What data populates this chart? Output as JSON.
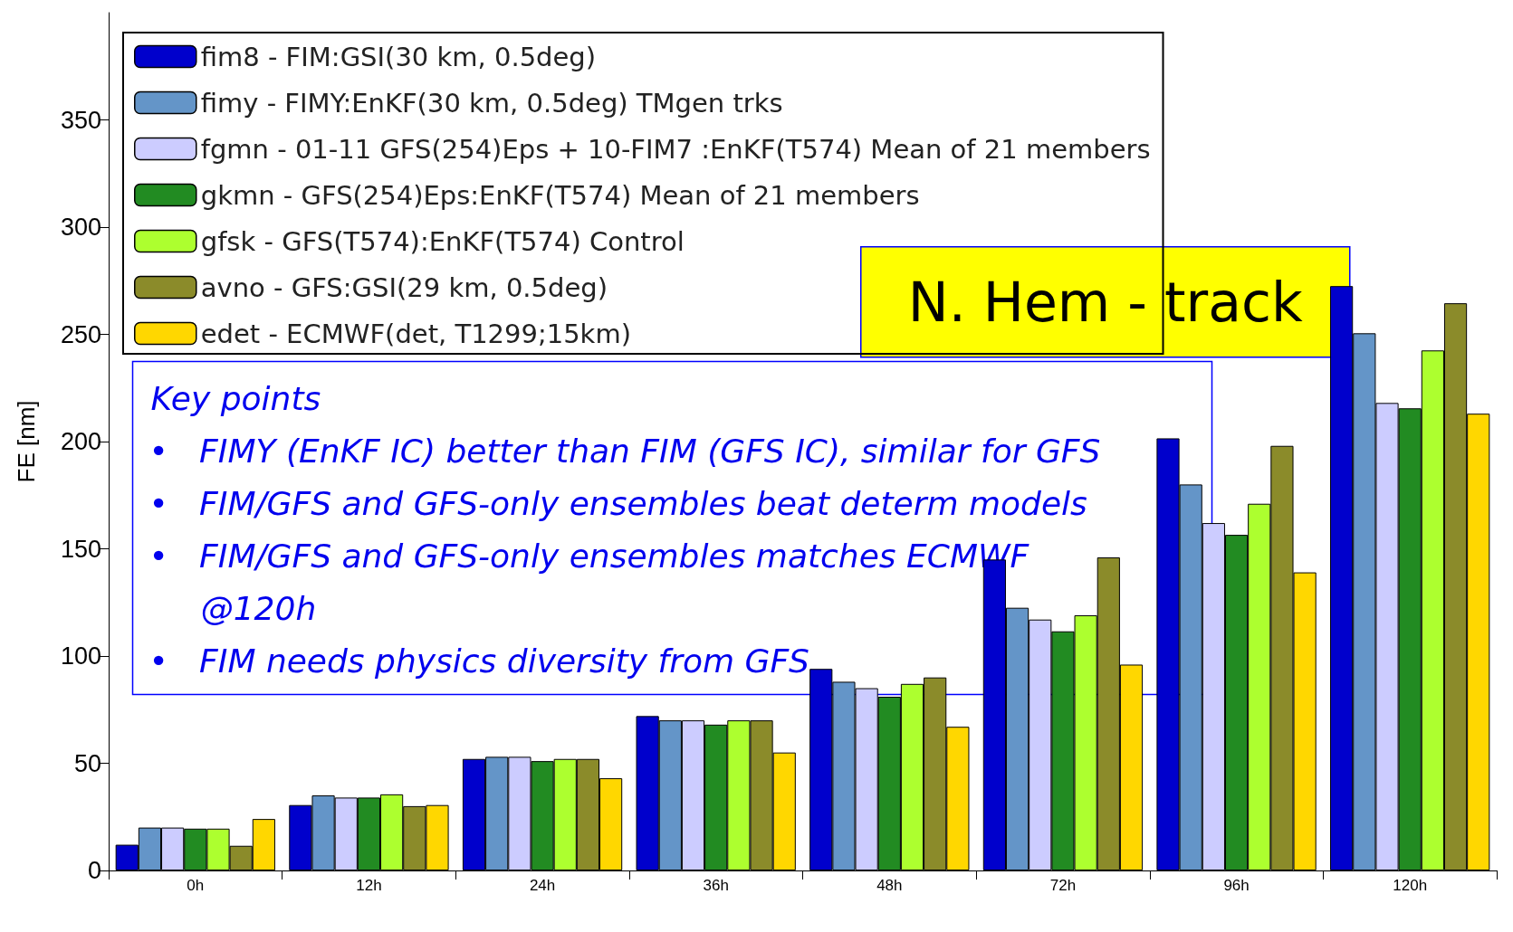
{
  "chart_data": {
    "type": "bar",
    "ylabel": "FE [nm]",
    "categories": [
      "0h",
      "12h",
      "24h",
      "36h",
      "48h",
      "72h",
      "96h",
      "120h"
    ],
    "series": [
      {
        "name": "fim8 - FIM:GSI(30 km, 0.5deg)",
        "color": "#0000cc",
        "values": [
          12,
          30.5,
          52,
          72,
          94,
          145,
          201.5,
          272.5
        ]
      },
      {
        "name": "fimy - FIMY:EnKF(30 km, 0.5deg) TMgen trks",
        "color": "#6495c8",
        "values": [
          20,
          35,
          53,
          70,
          88,
          122.5,
          180,
          250.5
        ]
      },
      {
        "name": "fgmn - 01-11 GFS(254)Eps + 10-FIM7 :EnKF(T574) Mean of 21 members",
        "color": "#ccccff",
        "values": [
          20,
          34,
          53,
          70,
          85,
          117,
          162,
          218
        ]
      },
      {
        "name": "gkmn - GFS(254)Eps:EnKF(T574) Mean of 21 members",
        "color": "#228b22",
        "values": [
          19.5,
          34,
          51,
          68,
          81,
          111.5,
          156.5,
          215.5
        ]
      },
      {
        "name": "gfsk - GFS(T574):EnKF(T574) Control",
        "color": "#adff2f",
        "values": [
          19.5,
          35.5,
          52,
          70,
          87,
          119,
          171,
          242.5
        ]
      },
      {
        "name": "avno - GFS:GSI(29 km, 0.5deg)",
        "color": "#8b8b2a",
        "values": [
          11.5,
          30,
          52,
          70,
          90,
          146,
          198,
          264.5
        ]
      },
      {
        "name": "edet - ECMWF(det, T1299;15km)",
        "color": "#ffd700",
        "values": [
          24,
          30.5,
          43,
          55,
          67,
          96,
          139,
          213
        ]
      }
    ],
    "ylim": [
      0,
      400
    ],
    "yticks": [
      0,
      50,
      100,
      150,
      200,
      250,
      300,
      350
    ],
    "grid": false,
    "legend": "top left",
    "annotations": [
      "N. Hem - track",
      "Key points",
      "•   FIMY (EnKF IC) better than FIM (GFS IC), similar for GFS",
      "•   FIM/GFS and GFS-only ensembles beat determ models",
      "•   FIM/GFS and GFS-only ensembles matches ECMWF\n     @120h",
      "•   FIM needs physics diversity from GFS"
    ]
  }
}
